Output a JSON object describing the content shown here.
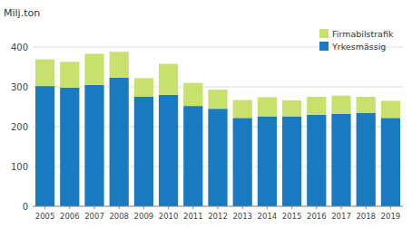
{
  "chart_data": {
    "type": "bar",
    "stacked": true,
    "y_label": "Milj.ton",
    "categories": [
      "2005",
      "2006",
      "2007",
      "2008",
      "2009",
      "2010",
      "2011",
      "2012",
      "2013",
      "2014",
      "2015",
      "2016",
      "2017",
      "2018",
      "2019"
    ],
    "series": [
      {
        "name": "Yrkesmässig",
        "color": "#1a7abf",
        "values": [
          302,
          298,
          305,
          323,
          275,
          280,
          252,
          245,
          222,
          226,
          226,
          230,
          232,
          235,
          222
        ]
      },
      {
        "name": "Firmabilstrafik",
        "color": "#c8e06e",
        "values": [
          67,
          65,
          78,
          65,
          47,
          78,
          58,
          48,
          45,
          48,
          40,
          45,
          46,
          40,
          43
        ]
      }
    ],
    "ylim": [
      0,
      450
    ],
    "yticks": [
      0,
      100,
      200,
      300,
      400
    ],
    "grid": true,
    "legend": "upper right"
  }
}
